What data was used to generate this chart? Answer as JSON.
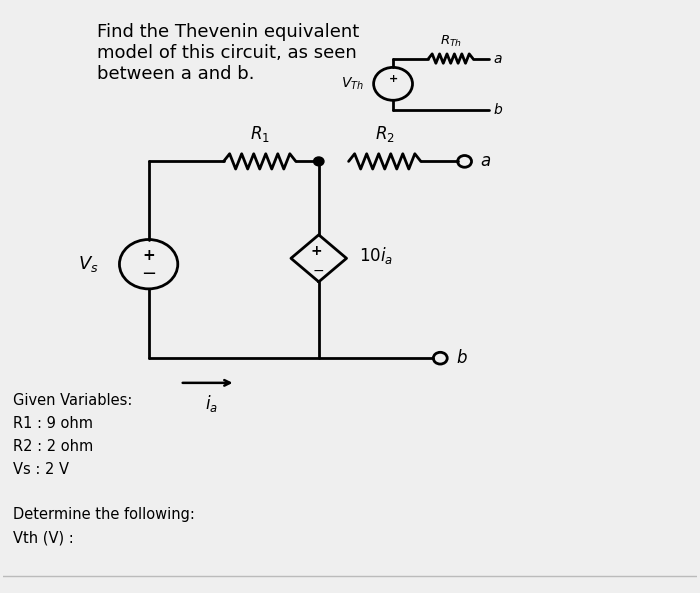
{
  "bg_color": "#efefef",
  "title_text": "Find the Thevenin equivalent\nmodel of this circuit, as seen\nbetween a and b.",
  "title_fontsize": 13,
  "given_vars": "Given Variables:\nR1 : 9 ohm\nR2 : 2 ohm\nVs : 2 V\n\nDetermine the following:\nVth (V) :"
}
